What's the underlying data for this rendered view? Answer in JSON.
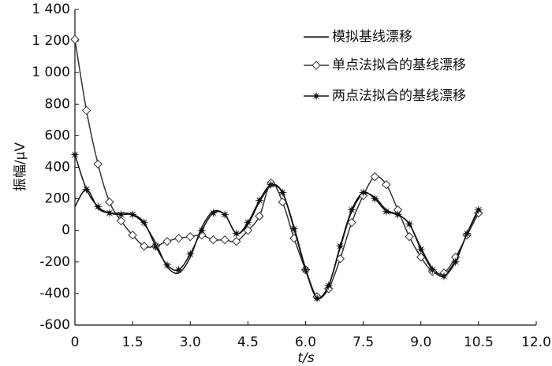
{
  "chart_data": {
    "type": "line",
    "x_label": "t/s",
    "y_label": "振幅/μV",
    "x": [
      0,
      0.3,
      0.6,
      0.9,
      1.2,
      1.5,
      1.8,
      2.1,
      2.4,
      2.7,
      3.0,
      3.3,
      3.6,
      3.9,
      4.2,
      4.5,
      4.8,
      5.1,
      5.4,
      5.7,
      6.0,
      6.3,
      6.6,
      6.9,
      7.2,
      7.5,
      7.8,
      8.1,
      8.4,
      8.7,
      9.0,
      9.3,
      9.6,
      9.9,
      10.2,
      10.5
    ],
    "series": [
      {
        "name": "模拟基线漂移",
        "color": "#111111",
        "marker": "none",
        "values": [
          150,
          260,
          140,
          110,
          110,
          100,
          40,
          -80,
          -230,
          -270,
          -170,
          20,
          120,
          100,
          -20,
          40,
          180,
          280,
          240,
          20,
          -240,
          -420,
          -350,
          -110,
          120,
          230,
          210,
          130,
          100,
          40,
          -110,
          -240,
          -280,
          -190,
          -20,
          140
        ]
      },
      {
        "name": "单点法拟合的基线漂移",
        "color": "#333333",
        "marker": "diamond",
        "values": [
          1210,
          760,
          420,
          180,
          60,
          -30,
          -100,
          -100,
          -70,
          -50,
          -40,
          -30,
          -60,
          -60,
          -70,
          0,
          90,
          300,
          180,
          -50,
          -250,
          -420,
          -370,
          -180,
          50,
          220,
          340,
          290,
          130,
          -40,
          -170,
          -260,
          -270,
          -170,
          -30,
          110
        ]
      },
      {
        "name": "两点法拟合的基线漂移",
        "color": "#111111",
        "marker": "star",
        "values": [
          480,
          260,
          150,
          110,
          100,
          100,
          50,
          -100,
          -220,
          -250,
          -150,
          0,
          110,
          100,
          -20,
          50,
          190,
          290,
          240,
          10,
          -250,
          -430,
          -350,
          -100,
          130,
          240,
          200,
          120,
          100,
          40,
          -120,
          -250,
          -290,
          -200,
          -20,
          130
        ]
      }
    ],
    "xlim": [
      0,
      12
    ],
    "xticks": [
      0,
      1.5,
      {
        "value": 3,
        "label": "3.0"
      },
      4.5,
      {
        "value": 6,
        "label": "6.0"
      },
      7.5,
      {
        "value": 9,
        "label": "9.0"
      },
      10.5,
      {
        "value": 12,
        "label": "12.0"
      }
    ],
    "ylim": [
      -600,
      1400
    ],
    "yticks": [
      -600,
      -400,
      -200,
      0,
      200,
      400,
      600,
      800,
      {
        "value": 1000,
        "label": "1 000"
      },
      {
        "value": 1200,
        "label": "1 200"
      },
      {
        "value": 1400,
        "label": "1 400"
      }
    ],
    "legend": "upper right"
  }
}
